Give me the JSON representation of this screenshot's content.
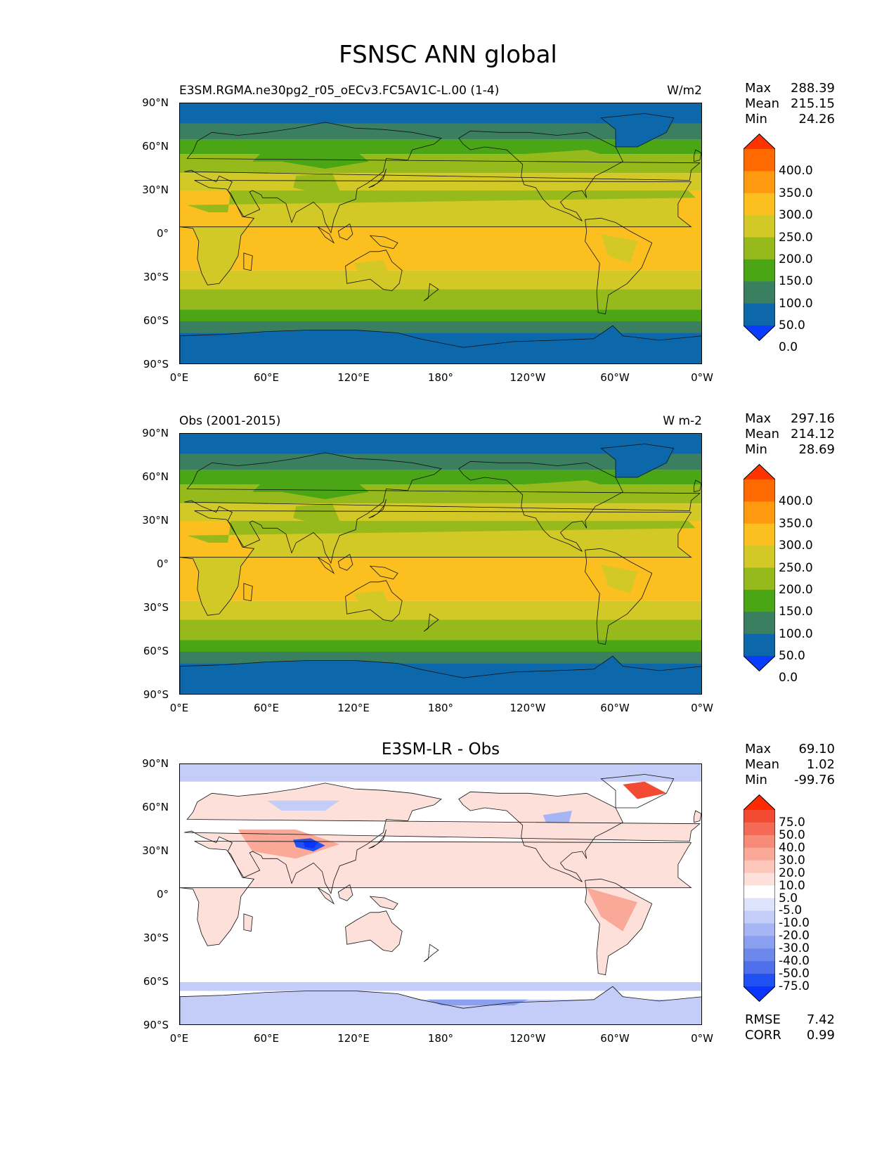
{
  "figure": {
    "title": "FSNSC ANN global"
  },
  "axes": {
    "yticks": [
      "90°N",
      "60°N",
      "30°N",
      "0°",
      "30°S",
      "60°S",
      "90°S"
    ],
    "xticks": [
      "0°E",
      "60°E",
      "120°E",
      "180°",
      "120°W",
      "60°W",
      "0°W"
    ]
  },
  "panels": [
    {
      "title_left": "E3SM.RGMA.ne30pg2_r05_oECv3.FC5AV1C-L.00 (1-4)",
      "title_center": "",
      "units": "W/m2",
      "stats": [
        {
          "label": "Max",
          "value": "288.39"
        },
        {
          "label": "Mean",
          "value": "215.15"
        },
        {
          "label": "Min",
          "value": "24.26"
        }
      ],
      "colorbar": {
        "labels": [
          "400.0",
          "350.0",
          "300.0",
          "250.0",
          "200.0",
          "150.0",
          "100.0",
          "50.0",
          "0.0"
        ],
        "colors": [
          "#ff3300",
          "#ff6a00",
          "#ff9a10",
          "#fbc020",
          "#d2c826",
          "#96ba1c",
          "#4aa614",
          "#3a8060",
          "#0c68aa",
          "#0a3cff"
        ]
      }
    },
    {
      "title_left": "Obs (2001-2015)",
      "title_center": "",
      "units": "W m-2",
      "stats": [
        {
          "label": "Max",
          "value": "297.16"
        },
        {
          "label": "Mean",
          "value": "214.12"
        },
        {
          "label": "Min",
          "value": "28.69"
        }
      ],
      "colorbar": {
        "labels": [
          "400.0",
          "350.0",
          "300.0",
          "250.0",
          "200.0",
          "150.0",
          "100.0",
          "50.0",
          "0.0"
        ],
        "colors": [
          "#ff3300",
          "#ff6a00",
          "#ff9a10",
          "#fbc020",
          "#d2c826",
          "#96ba1c",
          "#4aa614",
          "#3a8060",
          "#0c68aa",
          "#0a3cff"
        ]
      }
    },
    {
      "title_left": "",
      "title_center": "E3SM-LR - Obs",
      "units": "",
      "stats": [
        {
          "label": "Max",
          "value": "69.10"
        },
        {
          "label": "Mean",
          "value": "1.02"
        },
        {
          "label": "Min",
          "value": "-99.76"
        }
      ],
      "extra_stats": [
        {
          "label": "RMSE",
          "value": "7.42"
        },
        {
          "label": "CORR",
          "value": "0.99"
        }
      ],
      "colorbar": {
        "labels": [
          "75.0",
          "50.0",
          "40.0",
          "30.0",
          "20.0",
          "10.0",
          "5.0",
          "-5.0",
          "-10.0",
          "-20.0",
          "-30.0",
          "-40.0",
          "-50.0",
          "-75.0"
        ],
        "colors": [
          "#ff2a00",
          "#f34a34",
          "#f56a56",
          "#f88a78",
          "#faa898",
          "#fcc6ba",
          "#fde0da",
          "#ffffff",
          "#dde3fb",
          "#c3cdf8",
          "#a6b6f4",
          "#8a9ff0",
          "#6d88ec",
          "#4f70ea",
          "#2050f2",
          "#0a34ff"
        ]
      }
    }
  ]
}
